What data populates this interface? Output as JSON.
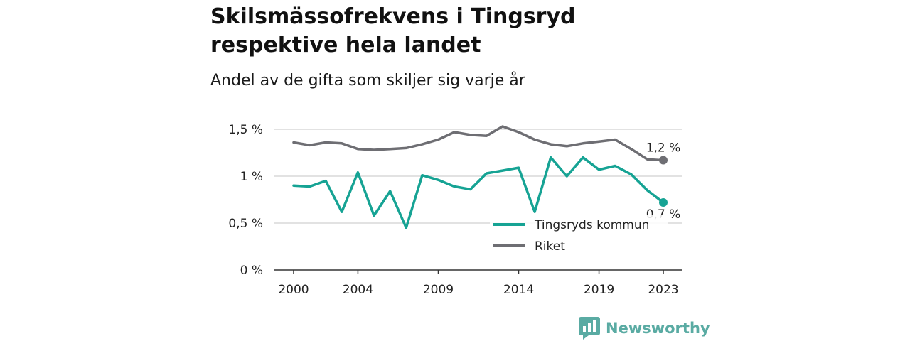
{
  "title_lines": [
    "Skilsmässofrekvens i Tingsryd",
    "respektive hela landet"
  ],
  "subtitle": "Andel av de gifta som skiljer sig varje år",
  "brand": {
    "name": "Newsworthy",
    "color": "#5aaba3"
  },
  "chart_data": {
    "type": "line",
    "x": [
      2000,
      2001,
      2002,
      2003,
      2004,
      2005,
      2006,
      2007,
      2008,
      2009,
      2010,
      2011,
      2012,
      2013,
      2014,
      2015,
      2016,
      2017,
      2018,
      2019,
      2020,
      2021,
      2022,
      2023
    ],
    "series": [
      {
        "name": "Tingsryds kommun",
        "color": "#16a394",
        "end_label": "0,7 %",
        "values": [
          0.9,
          0.89,
          0.95,
          0.62,
          1.04,
          0.58,
          0.84,
          0.45,
          1.01,
          0.96,
          0.89,
          0.86,
          1.03,
          1.06,
          1.09,
          0.62,
          1.2,
          1.0,
          1.2,
          1.07,
          1.11,
          1.02,
          0.85,
          0.72
        ]
      },
      {
        "name": "Riket",
        "color": "#6e6e73",
        "end_label": "1,2 %",
        "values": [
          1.36,
          1.33,
          1.36,
          1.35,
          1.29,
          1.28,
          1.29,
          1.3,
          1.34,
          1.39,
          1.47,
          1.44,
          1.43,
          1.53,
          1.47,
          1.39,
          1.34,
          1.32,
          1.35,
          1.37,
          1.39,
          1.29,
          1.18,
          1.17
        ]
      }
    ],
    "y_ticks": [
      {
        "value": 0,
        "label": "0 %"
      },
      {
        "value": 0.5,
        "label": "0,5 %"
      },
      {
        "value": 1,
        "label": "1 %"
      },
      {
        "value": 1.5,
        "label": "1,5 %"
      }
    ],
    "x_ticks": [
      {
        "value": 2000,
        "label": "2000"
      },
      {
        "value": 2004,
        "label": "2004"
      },
      {
        "value": 2009,
        "label": "2009"
      },
      {
        "value": 2014,
        "label": "2014"
      },
      {
        "value": 2019,
        "label": "2019"
      },
      {
        "value": 2023,
        "label": "2023"
      }
    ],
    "xlim": [
      2000,
      2023
    ],
    "ylim": [
      0,
      1.5
    ],
    "grid": "horizontal",
    "legend_position": "bottom-right",
    "xlabel": "",
    "ylabel": ""
  }
}
